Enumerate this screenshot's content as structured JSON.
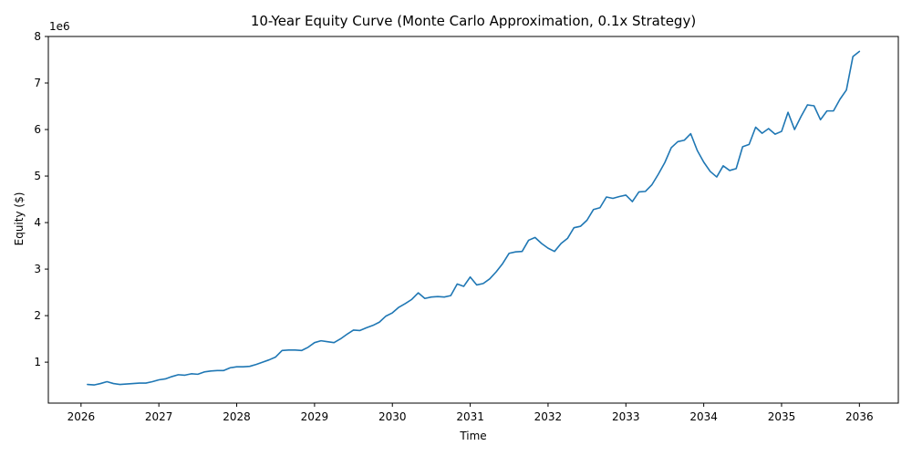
{
  "chart_data": {
    "type": "line",
    "title": "10-Year Equity Curve (Monte Carlo Approximation, 0.1x Strategy)",
    "xlabel": "Time",
    "ylabel": "Equity ($)",
    "y_offset_label": "1e6",
    "xlim": [
      2025.58,
      2036.5
    ],
    "ylim": [
      0.12,
      8.0
    ],
    "x_ticks": [
      2026,
      2027,
      2028,
      2029,
      2030,
      2031,
      2032,
      2033,
      2034,
      2035,
      2036
    ],
    "x_tick_labels": [
      "2026",
      "2027",
      "2028",
      "2029",
      "2030",
      "2031",
      "2032",
      "2033",
      "2034",
      "2035",
      "2036"
    ],
    "y_ticks": [
      1,
      2,
      3,
      4,
      5,
      6,
      7,
      8
    ],
    "y_tick_labels": [
      "1",
      "2",
      "3",
      "4",
      "5",
      "6",
      "7",
      "8"
    ],
    "grid": false,
    "color": "#1f77b4",
    "series": [
      {
        "x": [
          2026.083,
          2026.167,
          2026.25,
          2026.333,
          2026.417,
          2026.5,
          2026.583,
          2026.667,
          2026.75,
          2026.833,
          2026.917,
          2027.0,
          2027.083,
          2027.167,
          2027.25,
          2027.333,
          2027.417,
          2027.5,
          2027.583,
          2027.667,
          2027.75,
          2027.833,
          2027.917,
          2028.0,
          2028.083,
          2028.167,
          2028.25,
          2028.333,
          2028.417,
          2028.5,
          2028.583,
          2028.667,
          2028.75,
          2028.833,
          2028.917,
          2029.0,
          2029.083,
          2029.167,
          2029.25,
          2029.333,
          2029.417,
          2029.5,
          2029.583,
          2029.667,
          2029.75,
          2029.833,
          2029.917,
          2030.0,
          2030.083,
          2030.167,
          2030.25,
          2030.333,
          2030.417,
          2030.5,
          2030.583,
          2030.667,
          2030.75,
          2030.833,
          2030.917,
          2031.0,
          2031.083,
          2031.167,
          2031.25,
          2031.333,
          2031.417,
          2031.5,
          2031.583,
          2031.667,
          2031.75,
          2031.833,
          2031.917,
          2032.0,
          2032.083,
          2032.167,
          2032.25,
          2032.333,
          2032.417,
          2032.5,
          2032.583,
          2032.667,
          2032.75,
          2032.833,
          2032.917,
          2033.0,
          2033.083,
          2033.167,
          2033.25,
          2033.333,
          2033.417,
          2033.5,
          2033.583,
          2033.667,
          2033.75,
          2033.833,
          2033.917,
          2034.0,
          2034.083,
          2034.167,
          2034.25,
          2034.333,
          2034.417,
          2034.5,
          2034.583,
          2034.667,
          2034.75,
          2034.833,
          2034.917,
          2035.0,
          2035.083,
          2035.167,
          2035.25,
          2035.333,
          2035.417,
          2035.5,
          2035.583,
          2035.667,
          2035.75,
          2035.833,
          2035.917,
          2036.0
        ],
        "values": [
          0.52,
          0.51,
          0.54,
          0.58,
          0.54,
          0.52,
          0.53,
          0.54,
          0.55,
          0.55,
          0.58,
          0.62,
          0.64,
          0.69,
          0.73,
          0.72,
          0.75,
          0.74,
          0.79,
          0.81,
          0.82,
          0.82,
          0.88,
          0.9,
          0.9,
          0.91,
          0.95,
          1.0,
          1.05,
          1.11,
          1.25,
          1.26,
          1.26,
          1.25,
          1.32,
          1.42,
          1.46,
          1.44,
          1.42,
          1.5,
          1.6,
          1.69,
          1.68,
          1.74,
          1.79,
          1.86,
          1.99,
          2.06,
          2.18,
          2.26,
          2.35,
          2.49,
          2.37,
          2.4,
          2.41,
          2.4,
          2.43,
          2.68,
          2.63,
          2.83,
          2.66,
          2.69,
          2.79,
          2.94,
          3.12,
          3.34,
          3.37,
          3.38,
          3.62,
          3.68,
          3.55,
          3.45,
          3.38,
          3.55,
          3.66,
          3.89,
          3.92,
          4.05,
          4.28,
          4.32,
          4.55,
          4.52,
          4.56,
          4.59,
          4.45,
          4.66,
          4.67,
          4.81,
          5.04,
          5.29,
          5.61,
          5.74,
          5.77,
          5.91,
          5.55,
          5.3,
          5.1,
          4.98,
          5.22,
          5.12,
          5.16,
          5.63,
          5.68,
          6.05,
          5.92,
          6.02,
          5.9,
          5.96,
          6.37,
          6.0,
          6.28,
          6.53,
          6.51,
          6.21,
          6.4,
          6.4,
          6.65,
          6.85,
          7.57,
          7.68
        ]
      }
    ]
  }
}
